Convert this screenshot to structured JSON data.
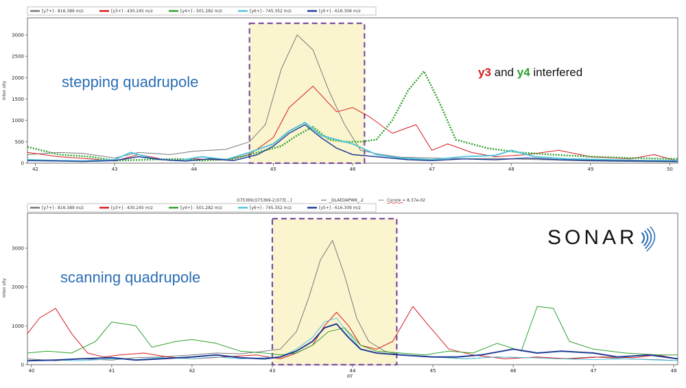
{
  "chart_data": [
    {
      "type": "line",
      "xlim": [
        41.9,
        50.1
      ],
      "ylim": [
        0,
        3400
      ],
      "xticks": [
        "42",
        "43",
        "44",
        "45",
        "46",
        "47",
        "48",
        "49",
        "50"
      ],
      "yticks": [
        "0",
        "500",
        "1000",
        "1500",
        "2000",
        "2500",
        "3000"
      ],
      "ylabel": "Inten sity",
      "annotation": "stepping quadrupole",
      "interference_note": {
        "y3": "y3",
        "and": " and ",
        "y4": "y4",
        "rest": " interfered"
      },
      "highlight": {
        "x0": 44.7,
        "x1": 46.15
      },
      "legend": [
        {
          "label": "[y7+] - 816.389  m/z",
          "color": "#777777"
        },
        {
          "label": "[y3+] - 430.245  m/z",
          "color": "#d7191c"
        },
        {
          "label": "[y4+] - 501.282  m/z",
          "color": "#2ca02c"
        },
        {
          "label": "[y6+] - 745.352  m/z",
          "color": "#4fc3d9"
        },
        {
          "label": "[y5+] - 616.309  m/z",
          "color": "#1f3a93"
        }
      ],
      "series": [
        {
          "name": "y7",
          "color": "#777777",
          "width": 1,
          "dash": "",
          "x": [
            41.9,
            42.3,
            42.6,
            43.0,
            43.3,
            43.7,
            44.0,
            44.4,
            44.7,
            44.9,
            45.1,
            45.3,
            45.5,
            45.7,
            45.9,
            46.1,
            46.3,
            46.6,
            47.0,
            47.4,
            47.8,
            48.2,
            48.6,
            49.0,
            49.5,
            50.1
          ],
          "y": [
            200,
            250,
            230,
            120,
            250,
            200,
            280,
            320,
            500,
            900,
            2200,
            3000,
            2650,
            1700,
            900,
            300,
            220,
            140,
            120,
            100,
            110,
            90,
            70,
            50,
            40,
            30
          ]
        },
        {
          "name": "y3",
          "color": "#d7191c",
          "width": 1,
          "dash": "",
          "x": [
            41.9,
            42.3,
            42.7,
            43.0,
            43.3,
            43.7,
            44.0,
            44.4,
            44.7,
            45.0,
            45.2,
            45.5,
            45.8,
            46.0,
            46.2,
            46.5,
            46.8,
            47.0,
            47.2,
            47.5,
            47.8,
            48.2,
            48.6,
            49.0,
            49.5,
            49.8,
            50.1
          ],
          "y": [
            250,
            150,
            100,
            50,
            200,
            60,
            100,
            70,
            200,
            600,
            1300,
            1800,
            1200,
            1300,
            1100,
            700,
            900,
            300,
            450,
            250,
            150,
            200,
            300,
            150,
            100,
            200,
            50
          ]
        },
        {
          "name": "y4",
          "color": "#2ca02c",
          "width": 2.5,
          "dash": "2,2",
          "x": [
            41.9,
            42.3,
            42.7,
            43.0,
            43.4,
            43.8,
            44.1,
            44.5,
            44.8,
            45.1,
            45.3,
            45.5,
            45.7,
            45.9,
            46.1,
            46.3,
            46.5,
            46.7,
            46.9,
            47.1,
            47.3,
            47.7,
            48.1,
            48.5,
            49.0,
            49.5,
            50.1
          ],
          "y": [
            380,
            200,
            150,
            60,
            80,
            100,
            60,
            100,
            250,
            400,
            650,
            850,
            550,
            500,
            500,
            550,
            1000,
            1700,
            2150,
            1400,
            550,
            350,
            250,
            200,
            150,
            120,
            100
          ]
        },
        {
          "name": "y6",
          "color": "#4fc3d9",
          "width": 2,
          "dash": "",
          "x": [
            41.9,
            42.3,
            42.6,
            43.0,
            43.2,
            43.5,
            43.8,
            44.1,
            44.4,
            44.7,
            45.0,
            45.2,
            45.4,
            45.6,
            45.8,
            46.0,
            46.3,
            46.6,
            47.0,
            47.4,
            47.8,
            48.0,
            48.3,
            48.7,
            49.2,
            49.7,
            50.1
          ],
          "y": [
            80,
            60,
            50,
            80,
            250,
            100,
            60,
            150,
            80,
            250,
            450,
            750,
            950,
            650,
            550,
            450,
            200,
            120,
            80,
            150,
            180,
            300,
            150,
            100,
            80,
            60,
            60
          ]
        },
        {
          "name": "y5",
          "color": "#1f3a93",
          "width": 1.5,
          "dash": "",
          "x": [
            41.9,
            42.3,
            42.6,
            43.0,
            43.3,
            43.6,
            43.9,
            44.2,
            44.5,
            44.8,
            45.0,
            45.2,
            45.4,
            45.6,
            45.8,
            46.0,
            46.3,
            46.7,
            47.0,
            47.4,
            47.8,
            48.2,
            48.6,
            49.1,
            49.6,
            50.1
          ],
          "y": [
            60,
            50,
            40,
            60,
            150,
            80,
            50,
            100,
            60,
            200,
            400,
            700,
            900,
            600,
            350,
            200,
            150,
            80,
            60,
            100,
            80,
            120,
            80,
            60,
            50,
            40
          ]
        }
      ]
    },
    {
      "type": "line",
      "xlim": [
        39.95,
        48.05
      ],
      "ylim": [
        0,
        3900
      ],
      "xticks": [
        "40",
        "41",
        "42",
        "43",
        "44",
        "45",
        "46",
        "47",
        "48"
      ],
      "yticks": [
        "0",
        "1000",
        "2000",
        "3000"
      ],
      "ylabel": "Inten sity",
      "xlabel": "iRT",
      "annotation": "scanning quadrupole",
      "header": {
        "accession": "O75369;O75369-2;O73[...]",
        "peptide": "_DLAEDAPWK_.2",
        "score": "Cscore = 8.37e-02"
      },
      "logo": "SONAR",
      "highlight": {
        "x0": 43.0,
        "x1": 44.55
      },
      "legend": [
        {
          "label": "[y7+] - 816.389  m/z",
          "color": "#777777"
        },
        {
          "label": "[y3+] - 430.245  m/z",
          "color": "#d7191c"
        },
        {
          "label": "[y4+] - 501.282  m/z",
          "color": "#2ca02c"
        },
        {
          "label": "[y6+] - 745.352  m/z",
          "color": "#4fc3d9"
        },
        {
          "label": "[y5+] - 616.309  m/z",
          "color": "#1f3a93"
        }
      ],
      "series": [
        {
          "name": "y7",
          "color": "#777777",
          "width": 1,
          "dash": "",
          "x": [
            39.95,
            40.3,
            40.6,
            41.0,
            41.3,
            41.6,
            42.0,
            42.3,
            42.6,
            42.9,
            43.1,
            43.3,
            43.45,
            43.6,
            43.75,
            43.9,
            44.05,
            44.2,
            44.4,
            44.6,
            45.0,
            45.4,
            45.8,
            46.2,
            46.6,
            47.0,
            47.4,
            47.8,
            48.05
          ],
          "y": [
            150,
            100,
            150,
            120,
            180,
            200,
            250,
            300,
            280,
            350,
            400,
            850,
            1700,
            2700,
            3200,
            2300,
            1200,
            600,
            350,
            250,
            200,
            150,
            200,
            180,
            150,
            200,
            150,
            130,
            100
          ]
        },
        {
          "name": "y3",
          "color": "#d7191c",
          "width": 1,
          "dash": "",
          "x": [
            39.95,
            40.1,
            40.3,
            40.5,
            40.7,
            40.9,
            41.1,
            41.4,
            41.7,
            42.0,
            42.4,
            42.8,
            43.1,
            43.3,
            43.5,
            43.65,
            43.8,
            43.95,
            44.1,
            44.3,
            44.5,
            44.75,
            44.95,
            45.2,
            45.5,
            45.9,
            46.3,
            46.7,
            47.1,
            47.5,
            47.8,
            48.05
          ],
          "y": [
            800,
            1200,
            1450,
            800,
            300,
            200,
            250,
            300,
            200,
            150,
            200,
            250,
            150,
            300,
            500,
            1000,
            1350,
            1000,
            500,
            400,
            600,
            1500,
            1000,
            400,
            250,
            150,
            200,
            150,
            200,
            180,
            250,
            150
          ]
        },
        {
          "name": "y4",
          "color": "#2ca02c",
          "width": 1,
          "dash": "",
          "x": [
            39.95,
            40.2,
            40.5,
            40.8,
            41.0,
            41.3,
            41.5,
            41.8,
            42.0,
            42.3,
            42.6,
            42.9,
            43.1,
            43.3,
            43.5,
            43.7,
            43.9,
            44.1,
            44.3,
            44.6,
            44.9,
            45.2,
            45.5,
            45.8,
            46.1,
            46.3,
            46.5,
            46.7,
            47.0,
            47.4,
            47.8,
            48.05
          ],
          "y": [
            300,
            350,
            300,
            600,
            1100,
            1000,
            450,
            600,
            650,
            550,
            350,
            300,
            250,
            300,
            500,
            850,
            950,
            500,
            350,
            300,
            250,
            350,
            300,
            550,
            350,
            1500,
            1450,
            600,
            400,
            300,
            250,
            250
          ]
        },
        {
          "name": "y6",
          "color": "#4fc3d9",
          "width": 1,
          "dash": "",
          "x": [
            39.95,
            40.3,
            40.6,
            41.0,
            41.3,
            41.6,
            42.0,
            42.3,
            42.6,
            42.9,
            43.1,
            43.3,
            43.5,
            43.65,
            43.8,
            43.95,
            44.1,
            44.3,
            44.6,
            45.0,
            45.4,
            45.8,
            46.2,
            46.6,
            47.0,
            47.4,
            47.8,
            48.05
          ],
          "y": [
            100,
            120,
            100,
            150,
            130,
            180,
            150,
            200,
            150,
            180,
            200,
            400,
            700,
            1100,
            1200,
            800,
            400,
            300,
            250,
            200,
            150,
            200,
            180,
            150,
            130,
            150,
            120,
            100
          ]
        },
        {
          "name": "y5",
          "color": "#1f3a93",
          "width": 2,
          "dash": "",
          "x": [
            39.95,
            40.3,
            40.6,
            41.0,
            41.3,
            41.6,
            42.0,
            42.3,
            42.6,
            42.9,
            43.1,
            43.3,
            43.5,
            43.65,
            43.8,
            43.95,
            44.1,
            44.3,
            44.6,
            45.0,
            45.3,
            45.6,
            46.0,
            46.3,
            46.6,
            47.0,
            47.3,
            47.7,
            48.05
          ],
          "y": [
            100,
            120,
            150,
            180,
            120,
            150,
            200,
            250,
            180,
            150,
            200,
            350,
            600,
            950,
            1050,
            700,
            400,
            300,
            250,
            200,
            200,
            250,
            400,
            300,
            350,
            300,
            200,
            250,
            150
          ]
        }
      ]
    }
  ]
}
